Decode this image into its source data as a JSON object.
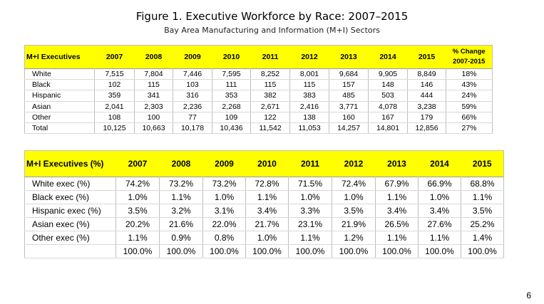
{
  "title": "Figure 1. Executive Workforce by Race: 2007–2015",
  "subtitle": "Bay Area Manufacturing and Information (M+I) Sectors",
  "table1": {
    "corner": "M+I Executives",
    "years": [
      "2007",
      "2008",
      "2009",
      "2010",
      "2011",
      "2012",
      "2013",
      "2014",
      "2015"
    ],
    "pct_header_line1": "% Change",
    "pct_header_line2": "2007-2015",
    "rows": [
      {
        "label": "White",
        "values": [
          "7,515",
          "7,804",
          "7,446",
          "7,595",
          "8,252",
          "8,001",
          "9,684",
          "9,905",
          "8,849"
        ],
        "pct": "18%"
      },
      {
        "label": "Black",
        "values": [
          "102",
          "115",
          "103",
          "111",
          "115",
          "115",
          "157",
          "148",
          "146"
        ],
        "pct": "43%"
      },
      {
        "label": "Hispanic",
        "values": [
          "359",
          "341",
          "316",
          "353",
          "382",
          "383",
          "485",
          "503",
          "444"
        ],
        "pct": "24%"
      },
      {
        "label": "Asian",
        "values": [
          "2,041",
          "2,303",
          "2,236",
          "2,268",
          "2,671",
          "2,416",
          "3,771",
          "4,078",
          "3,238"
        ],
        "pct": "59%"
      },
      {
        "label": "Other",
        "values": [
          "108",
          "100",
          "77",
          "109",
          "122",
          "138",
          "160",
          "167",
          "179"
        ],
        "pct": "66%"
      },
      {
        "label": "Total",
        "values": [
          "10,125",
          "10,663",
          "10,178",
          "10,436",
          "11,542",
          "11,053",
          "14,257",
          "14,801",
          "12,856"
        ],
        "pct": "27%"
      }
    ]
  },
  "table2": {
    "corner": "M+I Executives (%)",
    "years": [
      "2007",
      "2008",
      "2009",
      "2010",
      "2011",
      "2012",
      "2013",
      "2014",
      "2015"
    ],
    "rows": [
      {
        "label": "White exec (%)",
        "values": [
          "74.2%",
          "73.2%",
          "73.2%",
          "72.8%",
          "71.5%",
          "72.4%",
          "67.9%",
          "66.9%",
          "68.8%"
        ]
      },
      {
        "label": "Black exec (%)",
        "values": [
          "1.0%",
          "1.1%",
          "1.0%",
          "1.1%",
          "1.0%",
          "1.0%",
          "1.1%",
          "1.0%",
          "1.1%"
        ]
      },
      {
        "label": "Hispanic exec (%)",
        "values": [
          "3.5%",
          "3.2%",
          "3.1%",
          "3.4%",
          "3.3%",
          "3.5%",
          "3.4%",
          "3.4%",
          "3.5%"
        ]
      },
      {
        "label": "Asian exec (%)",
        "values": [
          "20.2%",
          "21.6%",
          "22.0%",
          "21.7%",
          "23.1%",
          "21.9%",
          "26.5%",
          "27.6%",
          "25.2%"
        ]
      },
      {
        "label": "Other exec (%)",
        "values": [
          "1.1%",
          "0.9%",
          "0.8%",
          "1.0%",
          "1.1%",
          "1.2%",
          "1.1%",
          "1.1%",
          "1.4%"
        ]
      },
      {
        "label": "",
        "values": [
          "100.0%",
          "100.0%",
          "100.0%",
          "100.0%",
          "100.0%",
          "100.0%",
          "100.0%",
          "100.0%",
          "100.0%"
        ]
      }
    ]
  },
  "page_number": "6",
  "colors": {
    "header_fill": "#ffff00",
    "grid": "#bfbfbf"
  }
}
